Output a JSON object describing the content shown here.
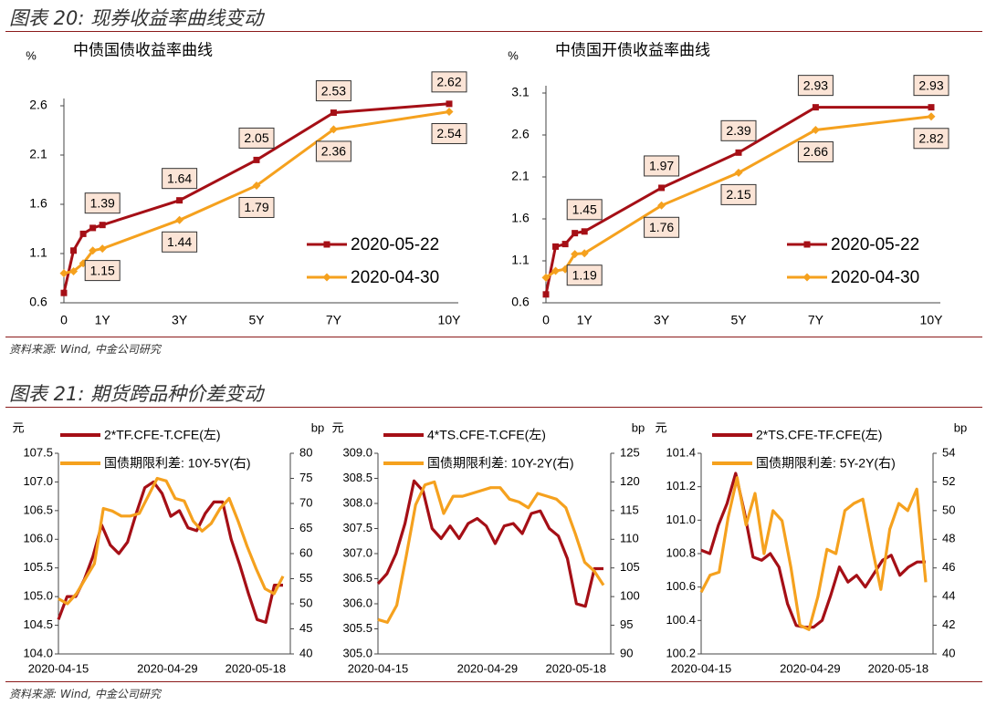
{
  "figure20": {
    "title": "图表 20:  现券收益率曲线变动",
    "source": "资料来源:  Wind, 中金公司研究"
  },
  "figure21": {
    "title": "图表 21:  期货跨品种价差变动",
    "source": "资料来源:  Wind, 中金公司研究"
  },
  "colors": {
    "dark": "#a50f16",
    "orange": "#f5a11e",
    "rule": "#8b1a1a",
    "label_fill": "#fbe4d6"
  },
  "chart_data": [
    {
      "type": "line",
      "title": "中债国债收益率曲线",
      "ylabel": "%",
      "ylim": [
        0.6,
        2.6
      ],
      "y_ticks": [
        "0.6",
        "1.1",
        "1.6",
        "2.1",
        "2.6"
      ],
      "x_ticks": [
        "0",
        "1Y",
        "3Y",
        "5Y",
        "7Y",
        "10Y"
      ],
      "x_tick_values": [
        0,
        1,
        3,
        5,
        7,
        10
      ],
      "legend_position": "right",
      "series": [
        {
          "name": "2020-05-22",
          "x": [
            0,
            0.25,
            0.5,
            0.75,
            1,
            3,
            5,
            7,
            10
          ],
          "values": [
            0.7,
            1.13,
            1.3,
            1.36,
            1.39,
            1.64,
            2.05,
            2.53,
            2.62
          ],
          "labels": [
            {
              "x": 1,
              "text": "1.39"
            },
            {
              "x": 3,
              "text": "1.64"
            },
            {
              "x": 5,
              "text": "2.05"
            },
            {
              "x": 7,
              "text": "2.53"
            },
            {
              "x": 10,
              "text": "2.62"
            }
          ]
        },
        {
          "name": "2020-04-30",
          "x": [
            0,
            0.25,
            0.5,
            0.75,
            1,
            3,
            5,
            7,
            10
          ],
          "values": [
            0.9,
            0.92,
            1.0,
            1.13,
            1.15,
            1.44,
            1.79,
            2.36,
            2.54
          ],
          "labels": [
            {
              "x": 1,
              "text": "1.15"
            },
            {
              "x": 3,
              "text": "1.44"
            },
            {
              "x": 5,
              "text": "1.79"
            },
            {
              "x": 7,
              "text": "2.36"
            },
            {
              "x": 10,
              "text": "2.54"
            }
          ]
        }
      ]
    },
    {
      "type": "line",
      "title": "中债国开债收益率曲线",
      "ylabel": "%",
      "ylim": [
        0.6,
        3.1
      ],
      "y_ticks": [
        "0.6",
        "1.1",
        "1.6",
        "2.1",
        "2.6",
        "3.1"
      ],
      "x_ticks": [
        "0",
        "1Y",
        "3Y",
        "5Y",
        "7Y",
        "10Y"
      ],
      "x_tick_values": [
        0,
        1,
        3,
        5,
        7,
        10
      ],
      "legend_position": "right",
      "series": [
        {
          "name": "2020-05-22",
          "x": [
            0,
            0.25,
            0.5,
            0.75,
            1,
            3,
            5,
            7,
            10
          ],
          "values": [
            0.7,
            1.27,
            1.3,
            1.43,
            1.45,
            1.97,
            2.39,
            2.93,
            2.93
          ],
          "labels": [
            {
              "x": 1,
              "text": "1.45"
            },
            {
              "x": 3,
              "text": "1.97"
            },
            {
              "x": 5,
              "text": "2.39"
            },
            {
              "x": 7,
              "text": "2.93"
            },
            {
              "x": 10,
              "text": "2.93"
            }
          ]
        },
        {
          "name": "2020-04-30",
          "x": [
            0,
            0.25,
            0.5,
            0.75,
            1,
            3,
            5,
            7,
            10
          ],
          "values": [
            0.9,
            0.98,
            1.0,
            1.18,
            1.19,
            1.76,
            2.15,
            2.66,
            2.82
          ],
          "labels": [
            {
              "x": 1,
              "text": "1.19"
            },
            {
              "x": 3,
              "text": "1.76"
            },
            {
              "x": 5,
              "text": "2.15"
            },
            {
              "x": 7,
              "text": "2.66"
            },
            {
              "x": 10,
              "text": "2.82"
            }
          ]
        }
      ]
    },
    {
      "type": "line",
      "left_unit": "元",
      "right_unit": "bp",
      "ylim_left": [
        104.0,
        107.5
      ],
      "ylim_right": [
        40,
        80
      ],
      "y_ticks_left": [
        "104.0",
        "104.5",
        "105.0",
        "105.5",
        "106.0",
        "106.5",
        "107.0",
        "107.5"
      ],
      "y_ticks_right": [
        "40",
        "45",
        "50",
        "55",
        "60",
        "65",
        "70",
        "75",
        "80"
      ],
      "x_ticks": [
        "2020-04-15",
        "2020-04-29",
        "2020-05-18"
      ],
      "legend_position": "top",
      "series": [
        {
          "name": "2*TF.CFE-T.CFE(左)",
          "axis": "left",
          "values": [
            104.6,
            105.0,
            105.0,
            105.3,
            105.7,
            106.25,
            105.9,
            105.75,
            105.95,
            106.45,
            106.9,
            107.0,
            106.8,
            106.4,
            106.5,
            106.2,
            106.15,
            106.45,
            106.65,
            106.65,
            106.0,
            105.55,
            105.05,
            104.6,
            104.55,
            105.2,
            105.2
          ]
        },
        {
          "name": "国债期限利差:  10Y-5Y(右)",
          "axis": "right",
          "values": [
            51,
            50,
            52,
            55,
            58,
            69,
            68.5,
            67.5,
            67.5,
            68,
            71.5,
            75,
            74.5,
            71,
            70.5,
            66.5,
            64.5,
            66,
            69,
            71,
            66.5,
            61.5,
            57,
            53,
            52,
            55.5
          ]
        }
      ]
    },
    {
      "type": "line",
      "left_unit": "元",
      "right_unit": "bp",
      "ylim_left": [
        305.0,
        309.0
      ],
      "ylim_right": [
        90,
        125
      ],
      "y_ticks_left": [
        "305.0",
        "305.5",
        "306.0",
        "306.5",
        "307.0",
        "307.5",
        "308.0",
        "308.5",
        "309.0"
      ],
      "y_ticks_right": [
        "90",
        "95",
        "100",
        "105",
        "110",
        "115",
        "120",
        "125"
      ],
      "x_ticks": [
        "2020-04-15",
        "2020-04-29",
        "2020-05-18"
      ],
      "legend_position": "top",
      "series": [
        {
          "name": "4*TS.CFE-T.CFE(左)",
          "axis": "left",
          "values": [
            306.4,
            306.6,
            307.0,
            307.6,
            308.45,
            308.25,
            307.5,
            307.3,
            307.55,
            307.3,
            307.6,
            307.7,
            307.55,
            307.2,
            307.55,
            307.6,
            307.4,
            307.8,
            307.85,
            307.5,
            307.35,
            306.9,
            306.0,
            305.95,
            306.7,
            306.7
          ]
        },
        {
          "name": "国债期限利差:  10Y-2Y(右)",
          "axis": "right",
          "values": [
            96,
            95.5,
            98.5,
            107,
            116,
            119.5,
            120,
            114.5,
            117.5,
            117.5,
            118,
            118.5,
            119,
            119,
            117,
            116.5,
            115.5,
            118,
            117.5,
            117,
            115.5,
            111,
            106,
            104.5,
            102
          ]
        }
      ]
    },
    {
      "type": "line",
      "left_unit": "元",
      "right_unit": "bp",
      "ylim_left": [
        100.2,
        101.4
      ],
      "ylim_right": [
        40,
        54
      ],
      "y_ticks_left": [
        "100.2",
        "100.4",
        "100.6",
        "100.8",
        "101.0",
        "101.2",
        "101.4"
      ],
      "y_ticks_right": [
        "40",
        "42",
        "44",
        "46",
        "48",
        "50",
        "52",
        "54"
      ],
      "x_ticks": [
        "2020-04-15",
        "2020-04-29",
        "2020-05-18"
      ],
      "legend_position": "top",
      "series": [
        {
          "name": "2*TS.CFE-TF.CFE(左)",
          "axis": "left",
          "values": [
            100.82,
            100.8,
            100.97,
            101.1,
            101.28,
            101.05,
            100.78,
            100.76,
            100.8,
            100.72,
            100.5,
            100.37,
            100.36,
            100.36,
            100.4,
            100.55,
            100.72,
            100.63,
            100.67,
            100.6,
            100.68,
            100.76,
            100.79,
            100.67,
            100.72,
            100.75,
            100.75
          ]
        },
        {
          "name": "国债期限利差:  5Y-2Y(右)",
          "axis": "right",
          "values": [
            44.3,
            45.5,
            45.7,
            49.5,
            52.3,
            49,
            51.2,
            47,
            50,
            49.3,
            46,
            42,
            41.7,
            44,
            47.3,
            47,
            50,
            50.5,
            50.8,
            47.5,
            44.5,
            48.7,
            50.5,
            50,
            51.5,
            45
          ]
        }
      ]
    }
  ]
}
